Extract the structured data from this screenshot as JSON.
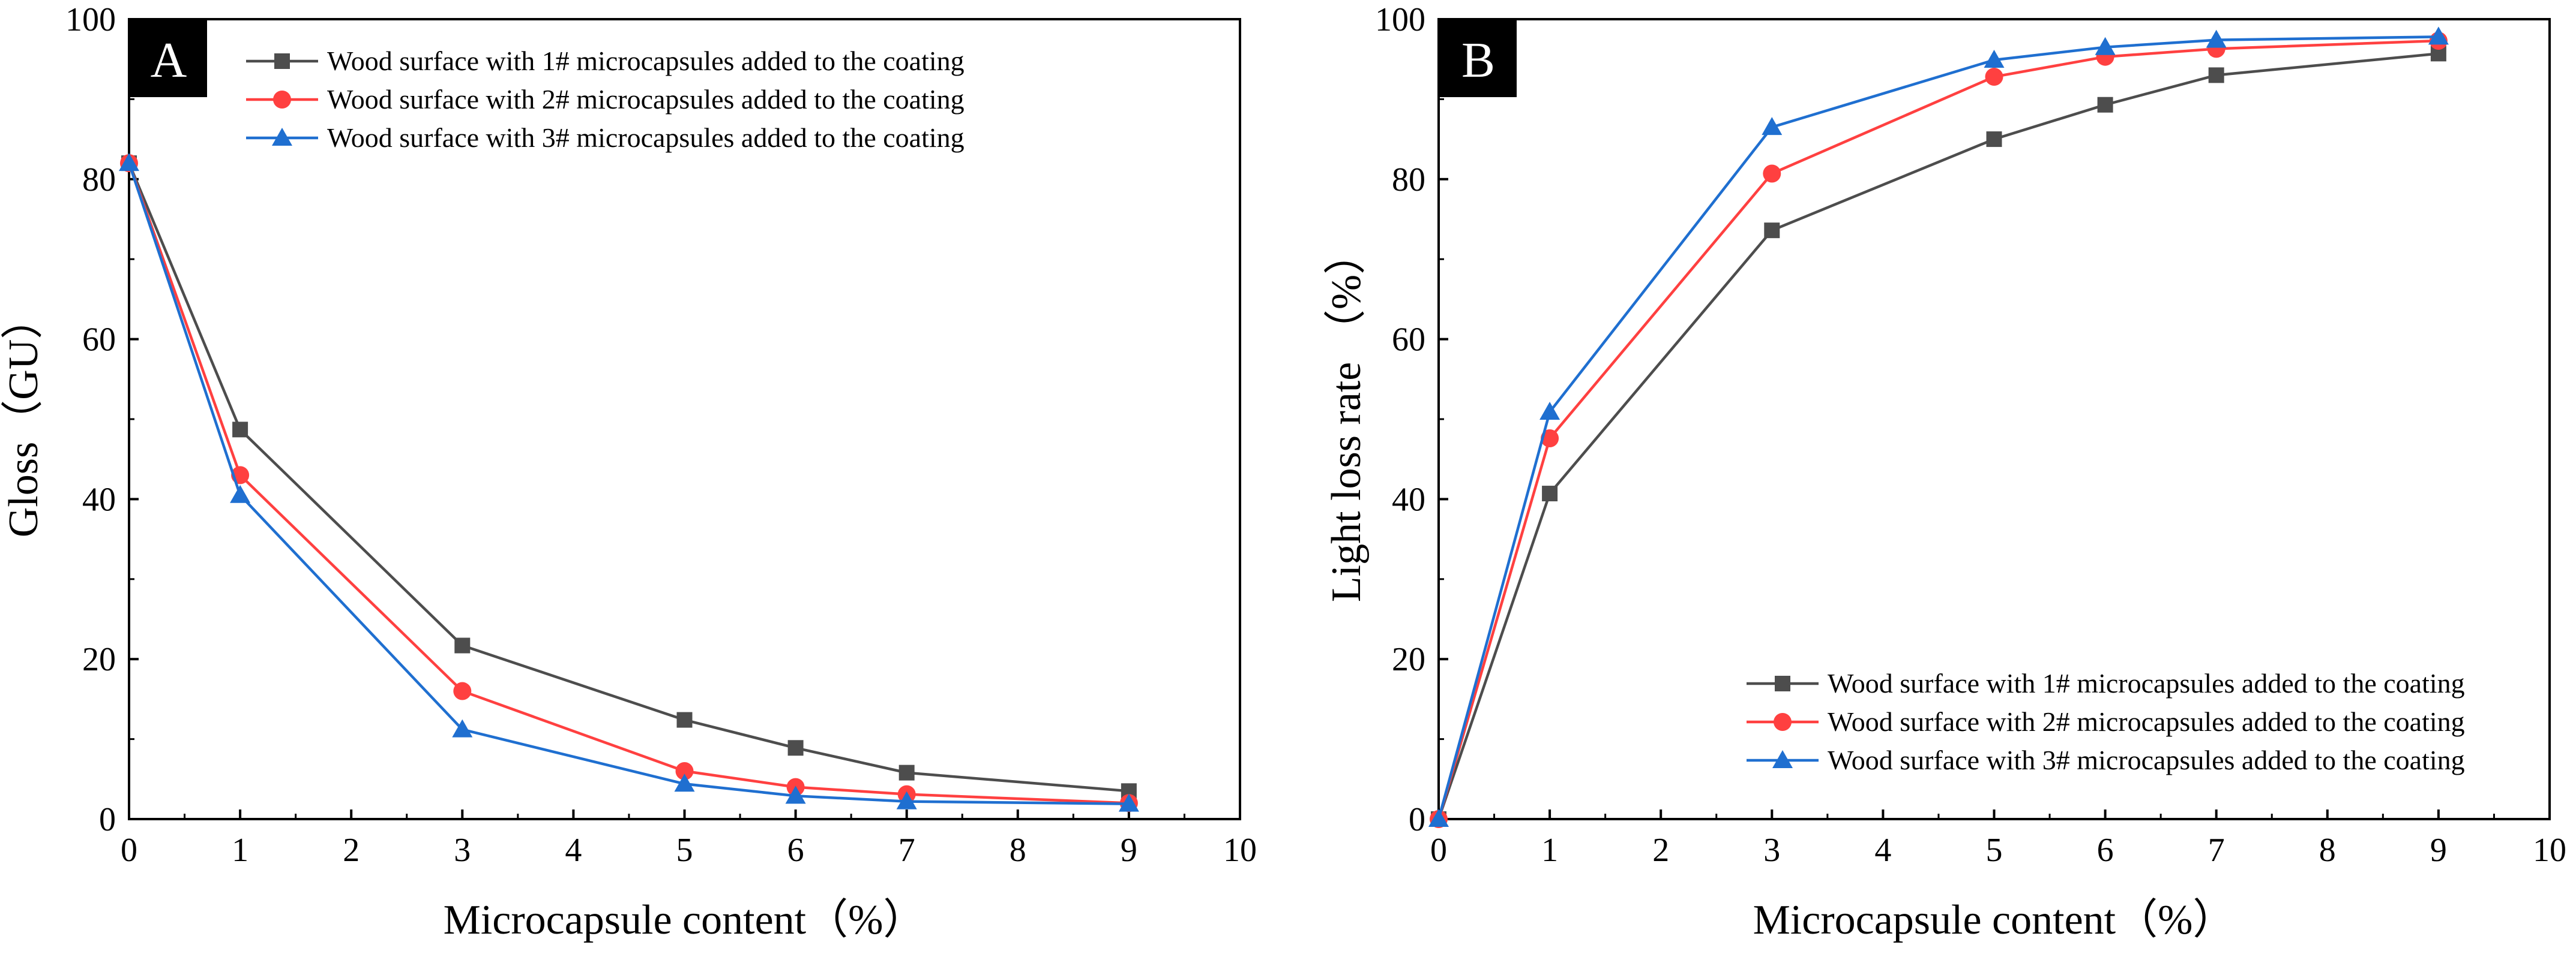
{
  "chart_data": [
    {
      "type": "line",
      "panel_label": "A",
      "title": "",
      "xlabel": "Microcapsule content（%）",
      "ylabel": "Gloss（GU）",
      "xlim": [
        0,
        10
      ],
      "ylim": [
        0,
        100
      ],
      "xticks": [
        0,
        1,
        2,
        3,
        4,
        5,
        6,
        7,
        8,
        9,
        10
      ],
      "yticks": [
        0,
        20,
        40,
        60,
        80,
        100
      ],
      "grid": false,
      "legend_position": "top-right",
      "x": [
        0,
        1,
        3,
        5,
        6,
        7,
        9
      ],
      "series": [
        {
          "name": "Wood surface with 1# microcapsules added to the coating",
          "color": "#4d4d4d",
          "marker": "square",
          "values": [
            82,
            48.7,
            21.7,
            12.4,
            8.9,
            5.8,
            3.5
          ]
        },
        {
          "name": "Wood surface with 2# microcapsules added to the coating",
          "color": "#ff4040",
          "marker": "circle",
          "values": [
            82,
            43,
            16,
            6,
            4,
            3.1,
            2
          ]
        },
        {
          "name": "Wood surface with 3# microcapsules added to the coating",
          "color": "#1f6fd0",
          "marker": "triangle",
          "values": [
            82,
            40.5,
            11.2,
            4.4,
            2.9,
            2.2,
            1.9
          ]
        }
      ]
    },
    {
      "type": "line",
      "panel_label": "B",
      "title": "",
      "xlabel": "Microcapsule content（%）",
      "ylabel": "Light loss rate （%）",
      "xlim": [
        0,
        10
      ],
      "ylim": [
        0,
        100
      ],
      "xticks": [
        0,
        1,
        2,
        3,
        4,
        5,
        6,
        7,
        8,
        9,
        10
      ],
      "yticks": [
        0,
        20,
        40,
        60,
        80,
        100
      ],
      "grid": false,
      "legend_position": "bottom-right",
      "x": [
        0,
        1,
        3,
        5,
        6,
        7,
        9
      ],
      "series": [
        {
          "name": "Wood surface with 1# microcapsules added to the coating",
          "color": "#4d4d4d",
          "marker": "square",
          "values": [
            0,
            40.7,
            73.6,
            85,
            89.3,
            93,
            95.7
          ]
        },
        {
          "name": "Wood surface with 2# microcapsules added to the coating",
          "color": "#ff4040",
          "marker": "circle",
          "values": [
            0,
            47.6,
            80.7,
            92.8,
            95.3,
            96.3,
            97.3
          ]
        },
        {
          "name": "Wood surface with 3# microcapsules added to the coating",
          "color": "#1f6fd0",
          "marker": "triangle",
          "values": [
            0,
            50.9,
            86.5,
            94.9,
            96.5,
            97.4,
            97.8
          ]
        }
      ]
    }
  ]
}
